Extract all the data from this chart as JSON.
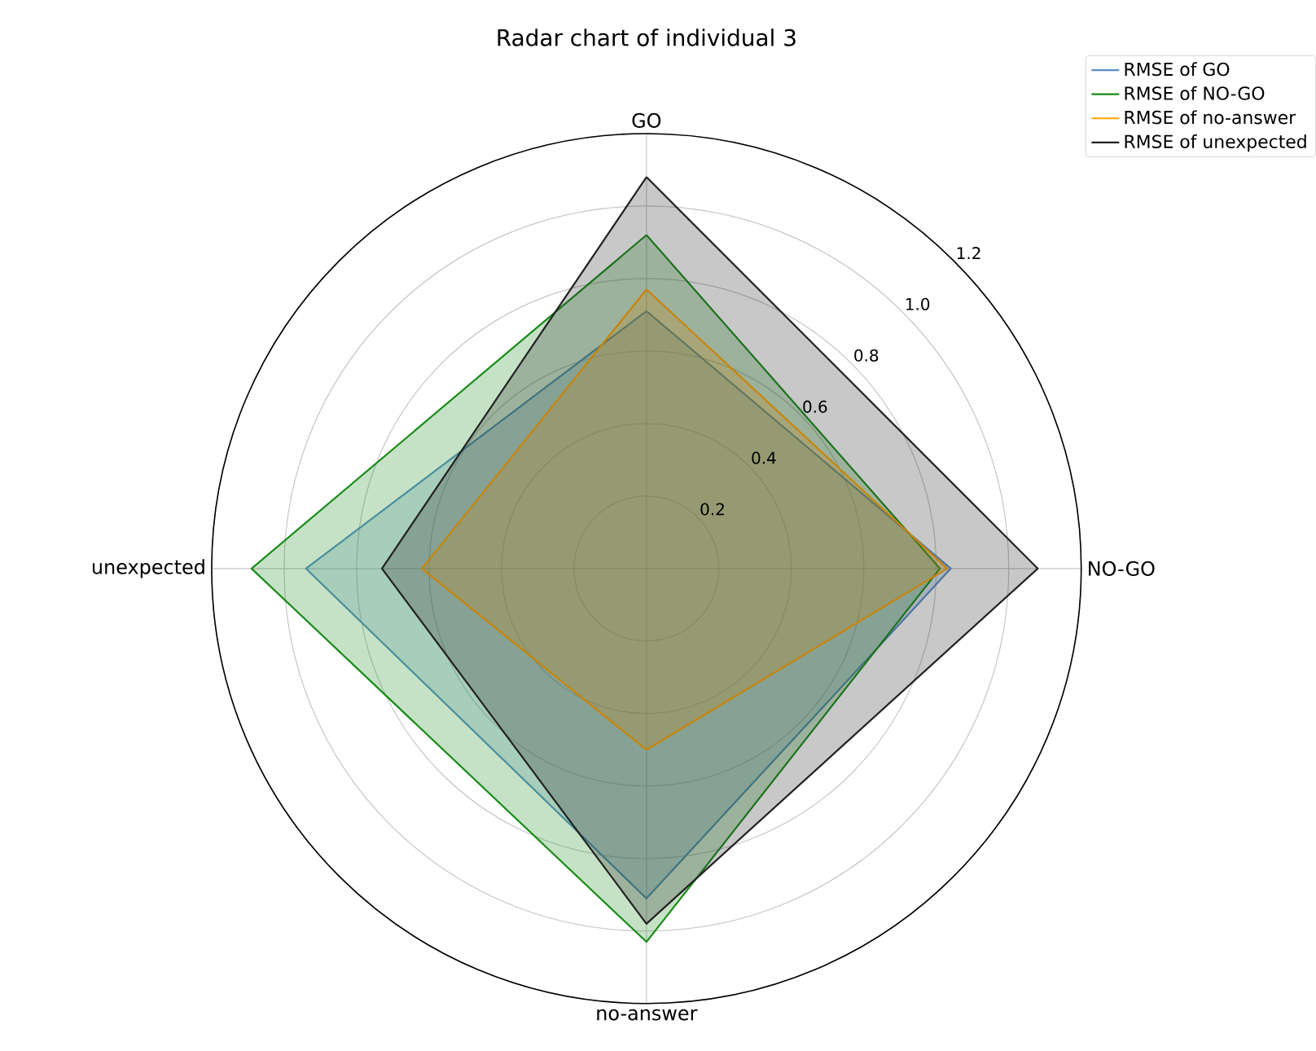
{
  "chart_data": {
    "type": "radar",
    "title": "Radar chart of individual 3",
    "categories": [
      "GO",
      "NO-GO",
      "no-answer",
      "unexpected"
    ],
    "ylim": [
      0,
      1.2
    ],
    "yticks": [
      0.2,
      0.4,
      0.6,
      0.8,
      {
        "value": 1.0,
        "label": "1.0"
      },
      1.2
    ],
    "grid": true,
    "legend": "top right",
    "series": [
      {
        "name": "RMSE of GO",
        "color": "#5b8fc7",
        "values": [
          0.71,
          0.84,
          0.91,
          0.94
        ]
      },
      {
        "name": "RMSE of NO-GO",
        "color": "#1a8c1a",
        "values": [
          0.92,
          0.81,
          1.03,
          1.09
        ]
      },
      {
        "name": "RMSE of no-answer",
        "color": "#ffa500",
        "values": [
          0.77,
          0.83,
          0.5,
          0.62
        ]
      },
      {
        "name": "RMSE of unexpected",
        "color": "#222222",
        "values": [
          1.08,
          1.08,
          0.98,
          0.73
        ]
      }
    ]
  }
}
